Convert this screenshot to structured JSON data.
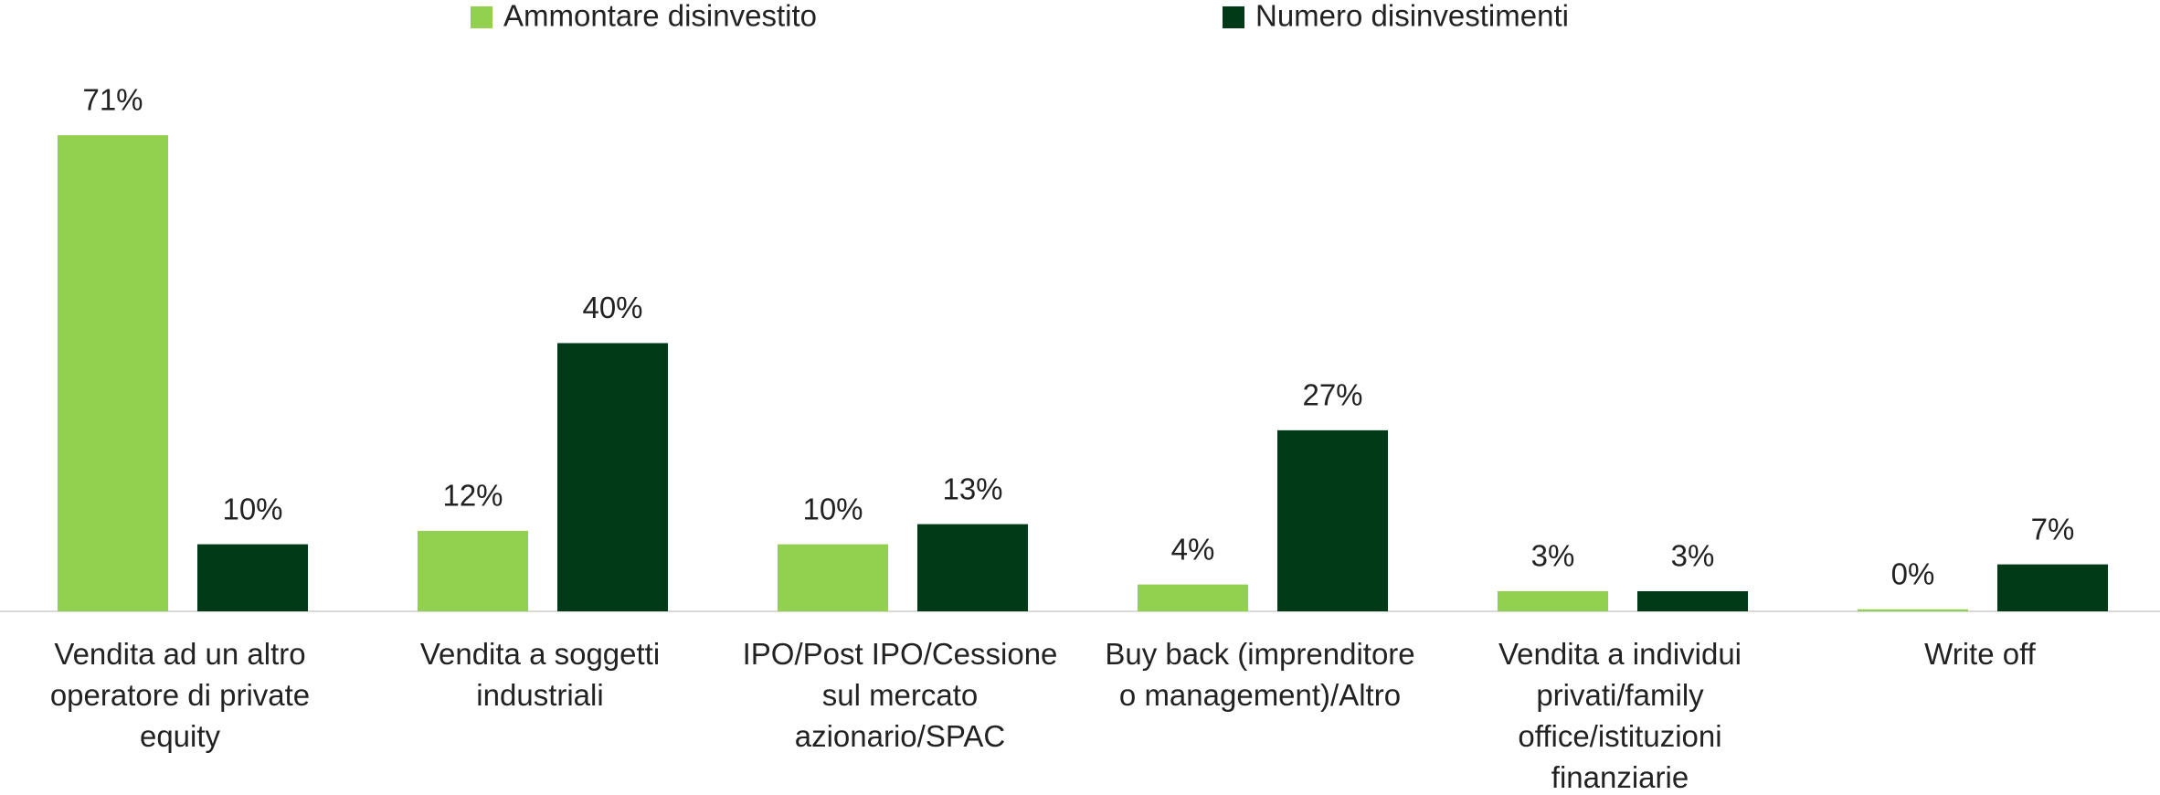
{
  "chart_data": {
    "type": "bar",
    "categories": [
      "Vendita ad un altro operatore di private equity",
      "Vendita a soggetti industriali",
      "IPO/Post IPO/Cessione sul mercato azionario/SPAC",
      "Buy back (imprenditore o management)/Altro",
      "Vendita a individui privati/family office/istituzioni finanziarie",
      "Write off"
    ],
    "series": [
      {
        "name": "Ammontare disinvestito",
        "color": "#92d050",
        "values": [
          71,
          12,
          10,
          4,
          3,
          0.3
        ],
        "value_labels": [
          "71%",
          "12%",
          "10%",
          "4%",
          "3%",
          "0%"
        ]
      },
      {
        "name": "Numero disinvestimenti",
        "color": "#003a17",
        "values": [
          10,
          40,
          13,
          27,
          3,
          7
        ],
        "value_labels": [
          "10%",
          "40%",
          "13%",
          "27%",
          "3%",
          "7%"
        ]
      }
    ],
    "legend": "top"
  }
}
